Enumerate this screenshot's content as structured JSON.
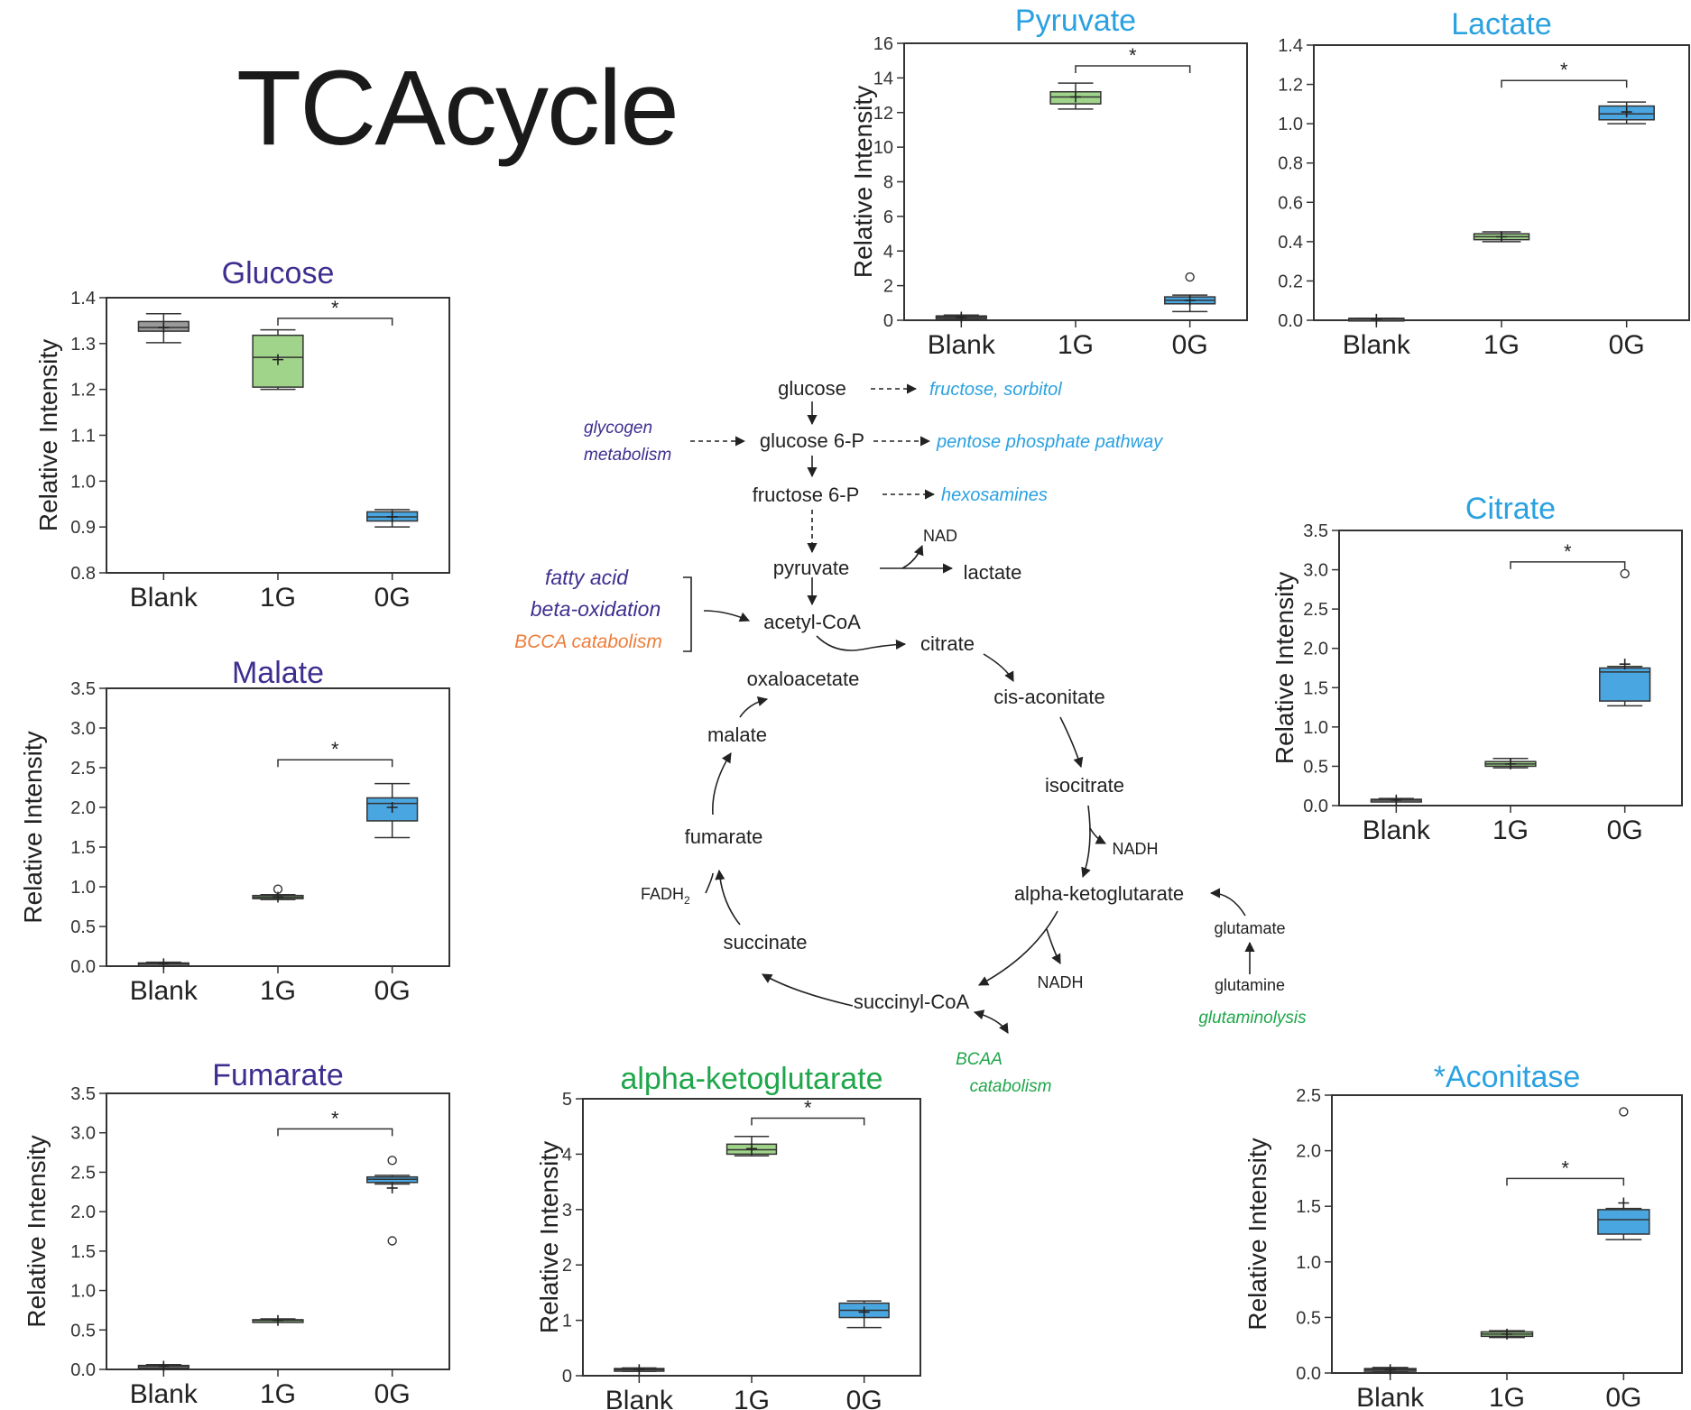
{
  "figure": {
    "title": "TCAcycle",
    "colors": {
      "title_purple": "#3d2f8f",
      "title_blue": "#2aa1e0",
      "title_green": "#1fa64a",
      "orange": "#ee7d3a",
      "box_gray": "#9a9a9a",
      "box_green": "#9fd48a",
      "box_blue": "#4aa6e0",
      "axis": "#333333"
    }
  },
  "chart_data": [
    {
      "id": "glucose",
      "type": "box",
      "title": "Glucose",
      "title_color": "purple",
      "ylabel": "Relative Intensity",
      "categories": [
        "Blank",
        "1G",
        "0G"
      ],
      "ylim": [
        0.8,
        1.4
      ],
      "yticks": [
        "0.8",
        "0.9",
        "1.0",
        "1.1",
        "1.2",
        "1.3",
        "1.4"
      ],
      "boxes": [
        {
          "q1": 1.327,
          "median": 1.335,
          "q3": 1.348,
          "min": 1.302,
          "max": 1.365,
          "mean": 1.335,
          "outliers": [],
          "color": "gray"
        },
        {
          "q1": 1.205,
          "median": 1.27,
          "q3": 1.318,
          "min": 1.2,
          "max": 1.33,
          "mean": 1.265,
          "outliers": [],
          "color": "green"
        },
        {
          "q1": 0.913,
          "median": 0.922,
          "q3": 0.933,
          "min": 0.9,
          "max": 0.938,
          "mean": 0.922,
          "outliers": [],
          "color": "blue"
        }
      ],
      "significance": {
        "from": 1,
        "to": 2,
        "y": 1.355,
        "label": "*"
      }
    },
    {
      "id": "malate",
      "type": "box",
      "title": "Malate",
      "title_color": "purple",
      "ylabel": "Relative Intensity",
      "categories": [
        "Blank",
        "1G",
        "0G"
      ],
      "ylim": [
        0,
        3.5
      ],
      "yticks": [
        "0.0",
        "0.5",
        "1.0",
        "1.5",
        "2.0",
        "2.5",
        "3.0",
        "3.5"
      ],
      "boxes": [
        {
          "q1": 0.02,
          "median": 0.03,
          "q3": 0.04,
          "min": 0.01,
          "max": 0.05,
          "mean": 0.03,
          "outliers": [],
          "color": "gray"
        },
        {
          "q1": 0.85,
          "median": 0.87,
          "q3": 0.89,
          "min": 0.84,
          "max": 0.9,
          "mean": 0.87,
          "outliers": [
            0.97
          ],
          "color": "green"
        },
        {
          "q1": 1.83,
          "median": 2.05,
          "q3": 2.12,
          "min": 1.62,
          "max": 2.3,
          "mean": 2.0,
          "outliers": [],
          "color": "blue"
        }
      ],
      "significance": {
        "from": 1,
        "to": 2,
        "y": 2.6,
        "label": "*"
      }
    },
    {
      "id": "fumarate",
      "type": "box",
      "title": "Fumarate",
      "title_color": "purple",
      "ylabel": "Relative Intensity",
      "categories": [
        "Blank",
        "1G",
        "0G"
      ],
      "ylim": [
        0,
        3.5
      ],
      "yticks": [
        "0.0",
        "0.5",
        "1.0",
        "1.5",
        "2.0",
        "2.5",
        "3.0",
        "3.5"
      ],
      "boxes": [
        {
          "q1": 0.03,
          "median": 0.04,
          "q3": 0.05,
          "min": 0.02,
          "max": 0.06,
          "mean": 0.04,
          "outliers": [],
          "color": "gray"
        },
        {
          "q1": 0.61,
          "median": 0.62,
          "q3": 0.63,
          "min": 0.6,
          "max": 0.64,
          "mean": 0.62,
          "outliers": [],
          "color": "green"
        },
        {
          "q1": 2.37,
          "median": 2.41,
          "q3": 2.44,
          "min": 2.35,
          "max": 2.46,
          "mean": 2.3,
          "outliers": [
            2.65,
            1.63
          ],
          "color": "blue"
        }
      ],
      "significance": {
        "from": 1,
        "to": 2,
        "y": 3.05,
        "label": "*"
      }
    },
    {
      "id": "alpha-ketoglutarate",
      "type": "box",
      "title": "alpha-ketoglutarate",
      "title_color": "green",
      "ylabel": "Relative Intensity",
      "categories": [
        "Blank",
        "1G",
        "0G"
      ],
      "ylim": [
        0,
        5
      ],
      "yticks": [
        "0",
        "1",
        "2",
        "3",
        "4",
        "5"
      ],
      "boxes": [
        {
          "q1": 0.09,
          "median": 0.11,
          "q3": 0.13,
          "min": 0.08,
          "max": 0.14,
          "mean": 0.11,
          "outliers": [],
          "color": "gray"
        },
        {
          "q1": 4.0,
          "median": 4.08,
          "q3": 4.18,
          "min": 3.97,
          "max": 4.32,
          "mean": 4.1,
          "outliers": [],
          "color": "green"
        },
        {
          "q1": 1.05,
          "median": 1.18,
          "q3": 1.31,
          "min": 0.87,
          "max": 1.35,
          "mean": 1.15,
          "outliers": [],
          "color": "blue"
        }
      ],
      "significance": {
        "from": 1,
        "to": 2,
        "y": 4.65,
        "label": "*"
      }
    },
    {
      "id": "pyruvate",
      "type": "box",
      "title": "Pyruvate",
      "title_color": "blue",
      "ylabel": "Relative Intensity",
      "categories": [
        "Blank",
        "1G",
        "0G"
      ],
      "ylim": [
        0,
        16
      ],
      "yticks": [
        "0",
        "2",
        "4",
        "6",
        "8",
        "10",
        "12",
        "14",
        "16"
      ],
      "boxes": [
        {
          "q1": 0.1,
          "median": 0.18,
          "q3": 0.25,
          "min": 0.05,
          "max": 0.3,
          "mean": 0.18,
          "outliers": [],
          "color": "gray"
        },
        {
          "q1": 12.5,
          "median": 12.9,
          "q3": 13.2,
          "min": 12.2,
          "max": 13.7,
          "mean": 12.9,
          "outliers": [],
          "color": "green"
        },
        {
          "q1": 0.95,
          "median": 1.15,
          "q3": 1.35,
          "min": 0.5,
          "max": 1.45,
          "mean": 1.15,
          "outliers": [
            2.5
          ],
          "color": "blue"
        }
      ],
      "significance": {
        "from": 1,
        "to": 2,
        "y": 14.7,
        "label": "*"
      }
    },
    {
      "id": "lactate",
      "type": "box",
      "title": "Lactate",
      "title_color": "blue",
      "ylabel": "",
      "categories": [
        "Blank",
        "1G",
        "0G"
      ],
      "ylim": [
        0,
        1.4
      ],
      "yticks": [
        "0.0",
        "0.2",
        "0.4",
        "0.6",
        "0.8",
        "1.0",
        "1.2",
        "1.4"
      ],
      "boxes": [
        {
          "q1": 0.0,
          "median": 0.005,
          "q3": 0.01,
          "min": 0.0,
          "max": 0.01,
          "mean": 0.005,
          "outliers": [],
          "color": "gray"
        },
        {
          "q1": 0.41,
          "median": 0.425,
          "q3": 0.44,
          "min": 0.4,
          "max": 0.45,
          "mean": 0.425,
          "outliers": [],
          "color": "green"
        },
        {
          "q1": 1.02,
          "median": 1.05,
          "q3": 1.09,
          "min": 1.0,
          "max": 1.11,
          "mean": 1.06,
          "outliers": [],
          "color": "blue"
        }
      ],
      "significance": {
        "from": 1,
        "to": 2,
        "y": 1.22,
        "label": "*"
      }
    },
    {
      "id": "citrate",
      "type": "box",
      "title": "Citrate",
      "title_color": "blue",
      "ylabel": "Relative Intensity",
      "categories": [
        "Blank",
        "1G",
        "0G"
      ],
      "ylim": [
        0,
        3.5
      ],
      "yticks": [
        "0.0",
        "0.5",
        "1.0",
        "1.5",
        "2.0",
        "2.5",
        "3.0",
        "3.5"
      ],
      "boxes": [
        {
          "q1": 0.06,
          "median": 0.07,
          "q3": 0.08,
          "min": 0.05,
          "max": 0.09,
          "mean": 0.07,
          "outliers": [],
          "color": "gray"
        },
        {
          "q1": 0.5,
          "median": 0.53,
          "q3": 0.56,
          "min": 0.48,
          "max": 0.6,
          "mean": 0.53,
          "outliers": [],
          "color": "green"
        },
        {
          "q1": 1.33,
          "median": 1.7,
          "q3": 1.75,
          "min": 1.27,
          "max": 1.77,
          "mean": 1.8,
          "outliers": [
            2.95
          ],
          "color": "blue"
        }
      ],
      "significance": {
        "from": 1,
        "to": 2,
        "y": 3.1,
        "label": "*"
      }
    },
    {
      "id": "aconitase",
      "type": "box",
      "title": "*Aconitase",
      "title_color": "blue",
      "ylabel": "Relative Intensity",
      "categories": [
        "Blank",
        "1G",
        "0G"
      ],
      "ylim": [
        0,
        2.5
      ],
      "yticks": [
        "0.0",
        "0.5",
        "1.0",
        "1.5",
        "2.0",
        "2.5"
      ],
      "boxes": [
        {
          "q1": 0.02,
          "median": 0.03,
          "q3": 0.04,
          "min": 0.01,
          "max": 0.05,
          "mean": 0.03,
          "outliers": [],
          "color": "gray"
        },
        {
          "q1": 0.33,
          "median": 0.35,
          "q3": 0.37,
          "min": 0.32,
          "max": 0.38,
          "mean": 0.35,
          "outliers": [],
          "color": "green"
        },
        {
          "q1": 1.25,
          "median": 1.38,
          "q3": 1.47,
          "min": 1.2,
          "max": 1.48,
          "mean": 1.53,
          "outliers": [
            2.35
          ],
          "color": "blue"
        }
      ],
      "significance": {
        "from": 1,
        "to": 2,
        "y": 1.75,
        "label": "*"
      }
    }
  ],
  "pathway": {
    "metabolites": {
      "glucose": "glucose",
      "glucose6p": "glucose 6-P",
      "fructose6p": "fructose 6-P",
      "pyruvate": "pyruvate",
      "lactate": "lactate",
      "acetylcoa": "acetyl-CoA",
      "citrate": "citrate",
      "cisaconitate": "cis-aconitate",
      "isocitrate": "isocitrate",
      "akg": "alpha-ketoglutarate",
      "succinylcoa": "succinyl-CoA",
      "succinate": "succinate",
      "fumarate": "fumarate",
      "malate": "malate",
      "oxaloacetate": "oxaloacetate",
      "glutamate": "glutamate",
      "glutamine": "glutamine"
    },
    "cofactors": {
      "nad": "NAD",
      "nadh1": "NADH",
      "nadh2": "NADH",
      "fadh2_base": "FADH",
      "fadh2_sub": "2"
    },
    "side_pathways": {
      "fructose_sorbitol": "fructose, sorbitol",
      "pentose": "pentose phosphate pathway",
      "hexosamines": "hexosamines",
      "glycogen1": "glycogen",
      "glycogen2": "metabolism",
      "fatty_acid1": "fatty acid",
      "fatty_acid2": "beta-oxidation",
      "bcca": "BCCA catabolism",
      "bcaa1": "BCAA",
      "bcaa2": "catabolism",
      "glutaminolysis": "glutaminolysis"
    }
  }
}
